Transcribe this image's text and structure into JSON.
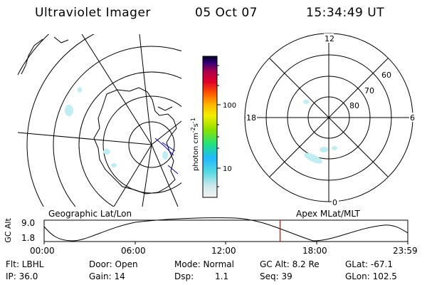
{
  "header": {
    "title": "Ultraviolet Imager",
    "date": "05 Oct 07",
    "time": "15:34:49 UT"
  },
  "colorbar": {
    "unit_label": "photon cm",
    "unit_sup1": "-2",
    "unit_mid": "s",
    "unit_sup2": "-1",
    "ticks": [
      "100",
      "10"
    ]
  },
  "polar_plot": {
    "mlt_labels": {
      "top": "12",
      "left": "18",
      "right": "6",
      "bottom": "0"
    },
    "lat_labels": [
      "60",
      "70",
      "80"
    ]
  },
  "map_labels": {
    "left": "Geographic Lat/Lon",
    "right": "Apex MLat/MLT"
  },
  "altitude_plot": {
    "ylabel": "GC Alt",
    "yticks": [
      "9.0",
      "1.8"
    ],
    "xticks": [
      "00:00",
      "06:00",
      "12:00",
      "18:00",
      "23:59"
    ],
    "current_time_fraction": 0.649
  },
  "info": {
    "row1": {
      "flt": "Flt: LBHL",
      "door": "Door: Open",
      "mode": "Mode: Normal",
      "gcalt": "GC Alt: 8.2 Re",
      "glat": "GLat: -67.1"
    },
    "row2": {
      "ip": "IP: 36.0",
      "gain": "Gain: 14",
      "dsp_label": "Dsp:",
      "dsp_value": "1.1",
      "seq": "Seq: 39",
      "glon": "GLon: 102.5"
    }
  }
}
